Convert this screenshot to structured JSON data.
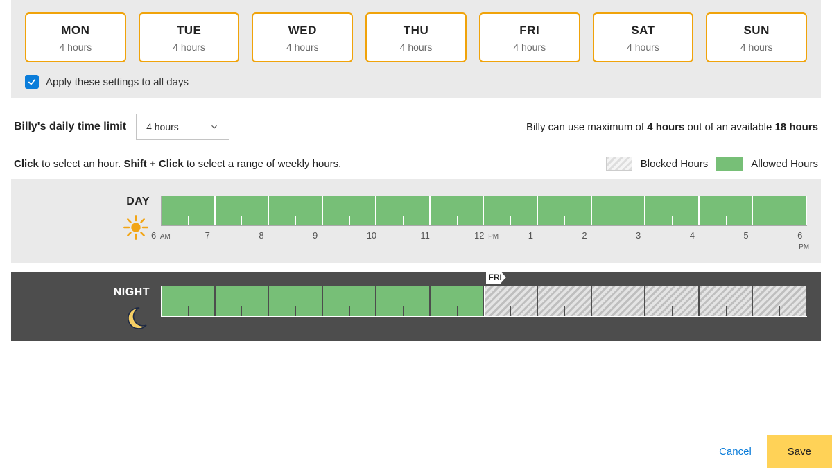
{
  "colors": {
    "accent_orange": "#f0a30a",
    "checkbox_blue": "#0b7dda",
    "allowed_green": "#77bf77",
    "blocked_stripe_a": "#ddd",
    "blocked_stripe_b": "#f4f4f4",
    "panel_bg": "#eaeaea",
    "night_bg": "#4d4d4d",
    "save_bg": "#ffd257",
    "link_blue": "#0b7dda"
  },
  "days": [
    {
      "abbr": "MON",
      "hours": "4 hours"
    },
    {
      "abbr": "TUE",
      "hours": "4 hours"
    },
    {
      "abbr": "WED",
      "hours": "4 hours"
    },
    {
      "abbr": "THU",
      "hours": "4 hours"
    },
    {
      "abbr": "FRI",
      "hours": "4 hours"
    },
    {
      "abbr": "SAT",
      "hours": "4 hours"
    },
    {
      "abbr": "SUN",
      "hours": "4 hours"
    }
  ],
  "apply_all": {
    "checked": true,
    "label": "Apply these settings to all days"
  },
  "limit": {
    "title": "Billy's daily time limit",
    "dropdown_value": "4 hours",
    "summary_prefix": "Billy can use maximum of ",
    "summary_max": "4 hours",
    "summary_mid": " out of an available ",
    "summary_avail": "18 hours"
  },
  "instructions": {
    "click_bold": "Click",
    "click_rest": " to select an hour. ",
    "shift_bold": "Shift + Click",
    "shift_rest": " to select a range of weekly hours."
  },
  "legend": {
    "blocked": "Blocked Hours",
    "allowed": "Allowed Hours"
  },
  "day_timeline": {
    "label": "DAY",
    "hours": [
      {
        "state": "allowed",
        "tick": "6",
        "suffix": "AM"
      },
      {
        "state": "allowed",
        "tick": "7"
      },
      {
        "state": "allowed",
        "tick": "8"
      },
      {
        "state": "allowed",
        "tick": "9"
      },
      {
        "state": "allowed",
        "tick": "10"
      },
      {
        "state": "allowed",
        "tick": "11"
      },
      {
        "state": "allowed",
        "tick": "12",
        "suffix": "PM"
      },
      {
        "state": "allowed",
        "tick": "1"
      },
      {
        "state": "allowed",
        "tick": "2"
      },
      {
        "state": "allowed",
        "tick": "3"
      },
      {
        "state": "allowed",
        "tick": "4"
      },
      {
        "state": "allowed",
        "tick": "5"
      }
    ],
    "end_tick": "6",
    "end_suffix": "PM"
  },
  "night_timeline": {
    "label": "NIGHT",
    "marker": {
      "position_index": 6,
      "label": "FRI"
    },
    "hours": [
      {
        "state": "allowed"
      },
      {
        "state": "allowed"
      },
      {
        "state": "allowed"
      },
      {
        "state": "allowed"
      },
      {
        "state": "allowed"
      },
      {
        "state": "allowed"
      },
      {
        "state": "blocked"
      },
      {
        "state": "blocked"
      },
      {
        "state": "blocked"
      },
      {
        "state": "blocked"
      },
      {
        "state": "blocked"
      },
      {
        "state": "blocked"
      }
    ]
  },
  "footer": {
    "cancel": "Cancel",
    "save": "Save"
  }
}
